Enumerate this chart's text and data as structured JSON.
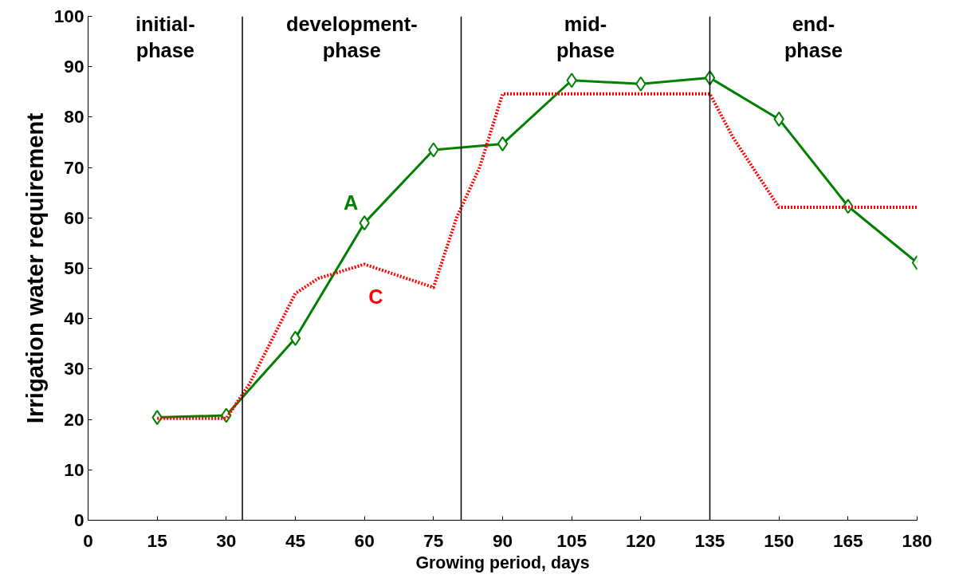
{
  "chart_data": {
    "type": "line",
    "xlabel": "Growing period, days",
    "ylabel": "Irrigation water requirement",
    "xlim": [
      0,
      180
    ],
    "xticks": [
      0,
      15,
      30,
      45,
      60,
      75,
      90,
      105,
      120,
      135,
      150,
      165,
      180
    ],
    "ylim": [
      0,
      100
    ],
    "yticks": [
      0,
      10,
      20,
      30,
      40,
      50,
      60,
      70,
      80,
      90,
      100
    ],
    "grid": false,
    "series": [
      {
        "name": "A",
        "color": "#008000",
        "marker": "diamond",
        "line_style": "solid",
        "x": [
          15,
          30,
          45,
          60,
          75,
          90,
          105,
          120,
          135,
          150,
          165,
          180
        ],
        "values": [
          20.4,
          20.8,
          36.1,
          59,
          73.5,
          74.7,
          87.3,
          86.6,
          87.8,
          79.6,
          62.3,
          51.1
        ]
      },
      {
        "name": "C",
        "color": "#ff0000",
        "marker": "none",
        "line_style": "dotted",
        "x": [
          15,
          30,
          35,
          45,
          50,
          60,
          75,
          80,
          85,
          90,
          135,
          140,
          150,
          180
        ],
        "values": [
          20.2,
          20.2,
          27,
          45,
          48,
          50.8,
          46.2,
          60,
          70,
          84.6,
          84.6,
          76,
          62.1,
          62.1
        ]
      }
    ],
    "ref_lines": [
      {
        "axis": "x",
        "value": 33.5,
        "color": "#000000"
      },
      {
        "axis": "x",
        "value": 81,
        "color": "#000000"
      },
      {
        "axis": "x",
        "value": 135,
        "color": "#000000"
      }
    ],
    "annotations": [
      "initial-\nphase",
      "development-\nphase",
      "mid-\nphase",
      "end-\nphase"
    ]
  }
}
